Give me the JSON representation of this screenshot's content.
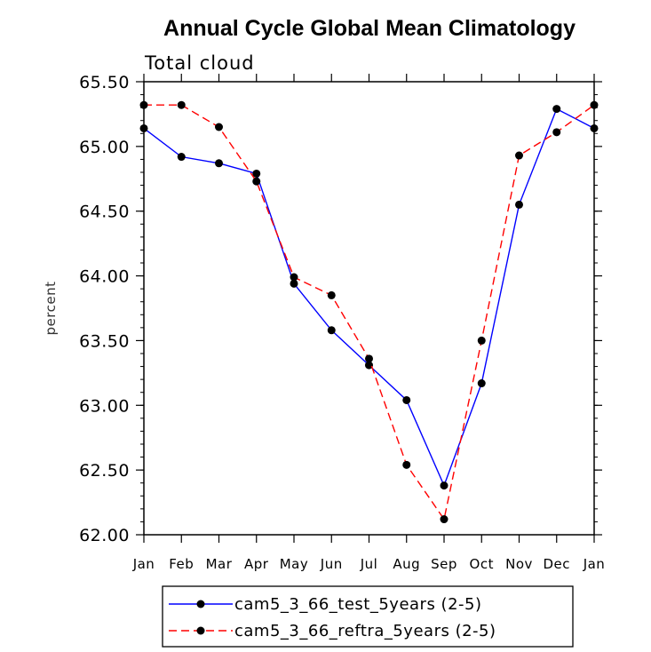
{
  "chart_data": {
    "type": "line",
    "title": "Annual Cycle Global Mean Climatology",
    "subtitle": "Total cloud",
    "xlabel": "",
    "ylabel": "percent",
    "categories": [
      "Jan",
      "Feb",
      "Mar",
      "Apr",
      "May",
      "Jun",
      "Jul",
      "Aug",
      "Sep",
      "Oct",
      "Nov",
      "Dec",
      "Jan"
    ],
    "ylim": [
      62.0,
      65.5
    ],
    "yticks": [
      "62.00",
      "62.50",
      "63.00",
      "63.50",
      "64.00",
      "64.50",
      "65.00",
      "65.50"
    ],
    "yminor_step": 0.1,
    "series": [
      {
        "name": "cam5_3_66_test_5years (2-5)",
        "color": "#0000ff",
        "dash": "solid",
        "values": [
          65.14,
          64.92,
          64.87,
          64.79,
          63.94,
          63.58,
          63.31,
          63.04,
          62.38,
          63.17,
          64.55,
          65.29,
          65.14
        ]
      },
      {
        "name": "cam5_3_66_reftra_5years (2-5)",
        "color": "#ff0000",
        "dash": "dashed",
        "values": [
          65.32,
          65.32,
          65.15,
          64.73,
          63.99,
          63.85,
          63.36,
          62.54,
          62.12,
          63.5,
          64.93,
          65.11,
          65.32
        ]
      }
    ],
    "legend": "bottom"
  }
}
